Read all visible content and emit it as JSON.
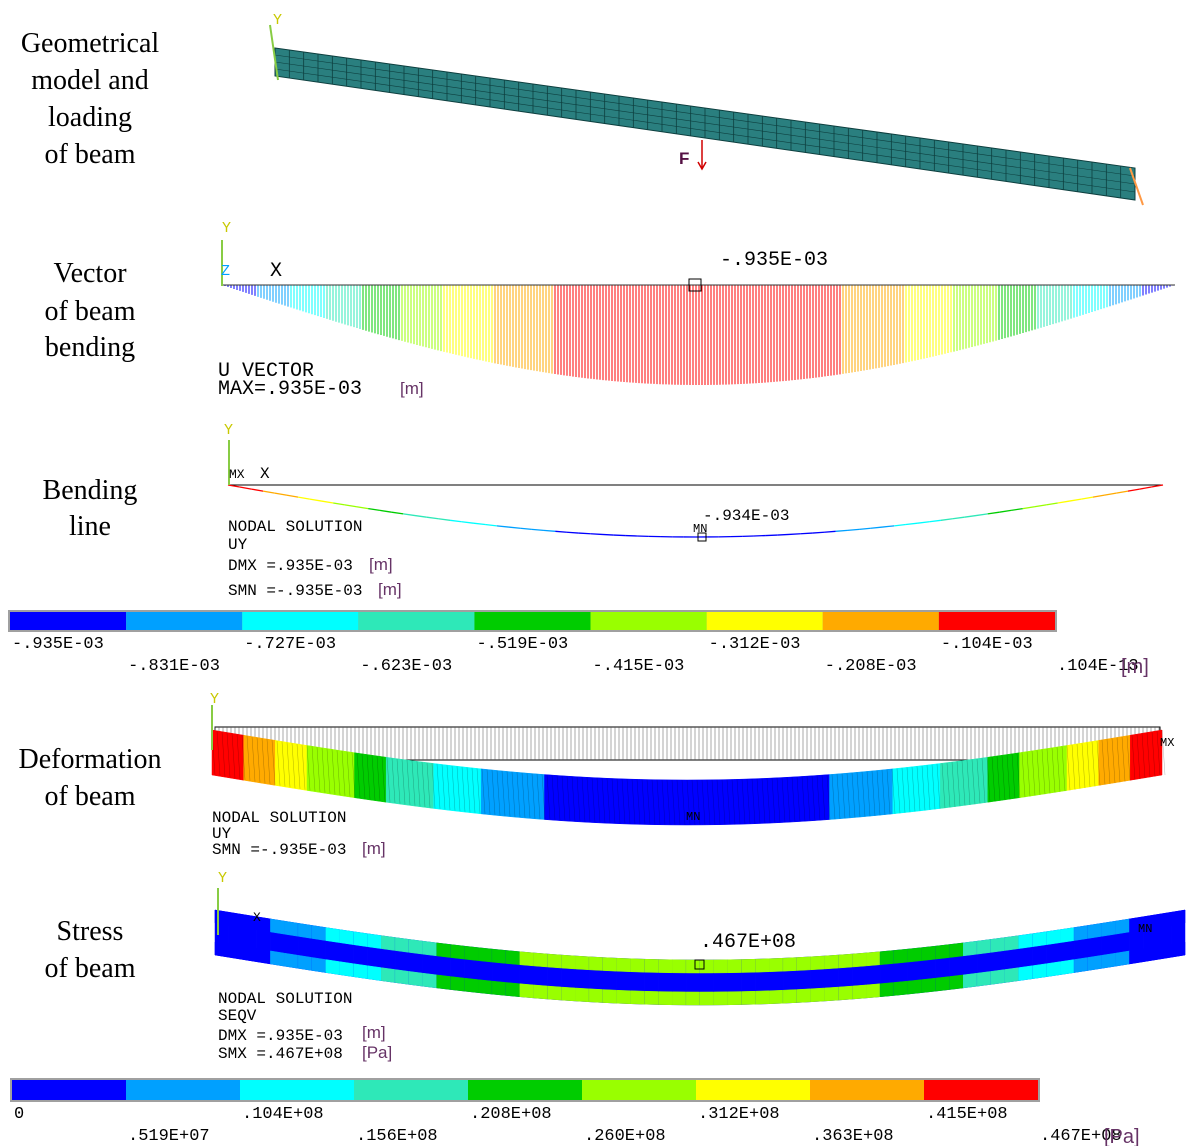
{
  "panels": [
    {
      "caption": [
        "Geometrical",
        "model and",
        "loading",
        "of beam"
      ],
      "axis_y": "Y",
      "force": "F"
    },
    {
      "caption": [
        "Vector",
        "of beam",
        "bending"
      ],
      "axis_y": "Y",
      "axis_z": "Z",
      "axis_x": "X",
      "peak": "-.935E-03",
      "result": "U VECTOR",
      "max": "MAX=.935E-03",
      "unit": "[m]"
    },
    {
      "caption": [
        "Bending",
        "line"
      ],
      "axis_y": "Y",
      "mx": "MX",
      "axis_x": "X",
      "peak": "-.934E-03",
      "mn": "MN",
      "lines": [
        "NODAL SOLUTION",
        "UY",
        "DMX =.935E-03",
        "SMN =-.935E-03"
      ],
      "units": [
        "[m]",
        "[m]"
      ]
    },
    {
      "caption": [
        "Deformation",
        "of beam"
      ],
      "axis_y": "Y",
      "mx": "MX",
      "mn": "MN",
      "lines": [
        "NODAL SOLUTION",
        "UY",
        "SMN =-.935E-03"
      ],
      "unit": "[m]"
    },
    {
      "caption": [
        "Stress",
        "of beam"
      ],
      "axis_y": "Y",
      "axis_x": "X",
      "mn": "MN",
      "peak": ".467E+08",
      "lines": [
        "NODAL SOLUTION",
        "SEQV",
        "DMX =.935E-03",
        "SMX =.467E+08"
      ],
      "units": [
        "[m]",
        "[Pa]"
      ]
    }
  ],
  "legends": [
    {
      "colors": [
        "#0000ff",
        "#00a0ff",
        "#00ffff",
        "#2ee8b8",
        "#00cc00",
        "#99ff00",
        "#ffff00",
        "#ffaa00",
        "#ff0000"
      ],
      "top": [
        "-.935E-03",
        "-.727E-03",
        "-.519E-03",
        "-.312E-03",
        "-.104E-03"
      ],
      "bottom": [
        "-.831E-03",
        "-.623E-03",
        "-.415E-03",
        "-.208E-03",
        ".104E-13"
      ],
      "unit": "[m]"
    },
    {
      "colors": [
        "#0000ff",
        "#00a0ff",
        "#00ffff",
        "#2ee8b8",
        "#00cc00",
        "#99ff00",
        "#ffff00",
        "#ffaa00",
        "#ff0000"
      ],
      "top": [
        "0",
        ".104E+08",
        ".208E+08",
        ".312E+08",
        ".415E+08"
      ],
      "bottom": [
        ".519E+07",
        ".156E+08",
        ".260E+08",
        ".363E+08",
        ".467E+08"
      ],
      "unit": "[Pa]"
    }
  ]
}
